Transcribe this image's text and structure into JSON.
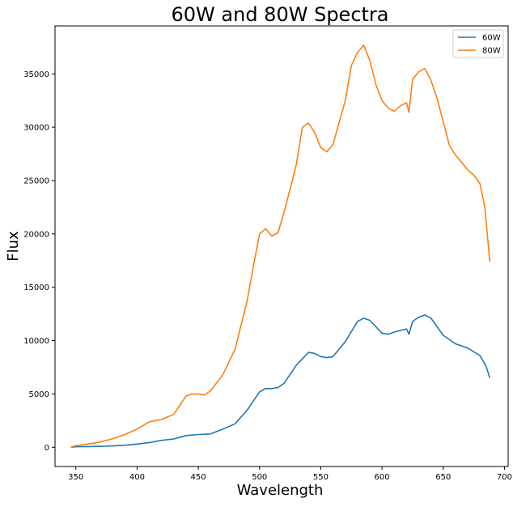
{
  "chart_data": {
    "type": "line",
    "title": "60W and 80W Spectra",
    "xlabel": "Wavelength",
    "ylabel": "Flux",
    "xlim": [
      333,
      703
    ],
    "ylim": [
      -1800,
      39500
    ],
    "xticks": [
      350,
      400,
      450,
      500,
      550,
      600,
      650,
      700
    ],
    "yticks": [
      0,
      5000,
      10000,
      15000,
      20000,
      25000,
      30000,
      35000
    ],
    "legend_position": "top-right",
    "grid": false,
    "series": [
      {
        "name": "60W",
        "color": "#1f77b4",
        "x": [
          346,
          350,
          360,
          370,
          380,
          390,
          400,
          410,
          420,
          430,
          440,
          450,
          460,
          470,
          480,
          490,
          500,
          505,
          510,
          515,
          520,
          530,
          540,
          545,
          550,
          555,
          560,
          570,
          580,
          585,
          590,
          600,
          605,
          610,
          620,
          622,
          625,
          630,
          635,
          640,
          650,
          660,
          670,
          680,
          685,
          688
        ],
        "values": [
          0,
          50,
          70,
          90,
          130,
          200,
          300,
          450,
          650,
          780,
          1100,
          1200,
          1250,
          1700,
          2200,
          3500,
          5200,
          5500,
          5500,
          5600,
          6000,
          7700,
          8900,
          8800,
          8500,
          8400,
          8500,
          9900,
          11800,
          12100,
          11900,
          10700,
          10600,
          10800,
          11100,
          10600,
          11800,
          12200,
          12400,
          12100,
          10500,
          9700,
          9300,
          8600,
          7600,
          6500
        ]
      },
      {
        "name": "80W",
        "color": "#ff7f0e",
        "x": [
          346,
          350,
          360,
          370,
          380,
          390,
          400,
          410,
          420,
          430,
          440,
          445,
          450,
          455,
          460,
          470,
          480,
          490,
          495,
          500,
          505,
          510,
          515,
          520,
          530,
          535,
          540,
          545,
          550,
          555,
          560,
          570,
          575,
          580,
          585,
          590,
          595,
          600,
          605,
          610,
          615,
          620,
          622,
          625,
          630,
          635,
          640,
          645,
          650,
          655,
          660,
          670,
          675,
          680,
          684,
          688
        ],
        "values": [
          0,
          150,
          300,
          500,
          800,
          1200,
          1700,
          2400,
          2600,
          3100,
          4800,
          5000,
          5000,
          4900,
          5300,
          6800,
          9200,
          13800,
          17000,
          20000,
          20500,
          19800,
          20100,
          22000,
          26500,
          30000,
          30400,
          29500,
          28100,
          27700,
          28400,
          32500,
          35800,
          37000,
          37700,
          36300,
          34000,
          32500,
          31800,
          31500,
          32000,
          32300,
          31400,
          34500,
          35200,
          35500,
          34400,
          32700,
          30500,
          28300,
          27400,
          26000,
          25500,
          24700,
          22500,
          17400
        ]
      }
    ]
  }
}
